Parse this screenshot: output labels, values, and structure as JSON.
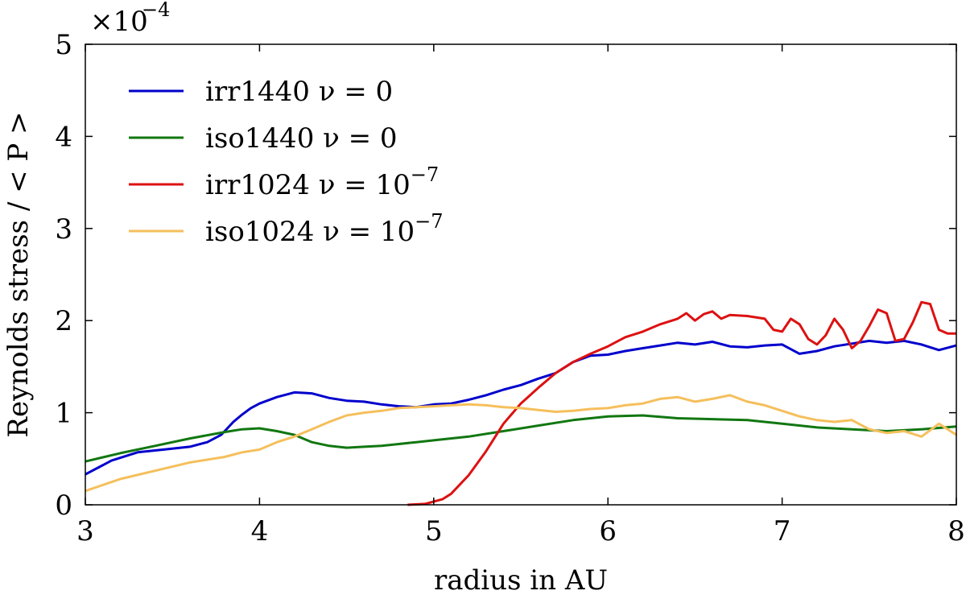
{
  "chart_data": {
    "type": "line",
    "title": "",
    "xlabel": "radius in AU",
    "ylabel": "Reynolds stress / < P >",
    "y_scale_label": {
      "prefix": "×10",
      "exponent": "−4"
    },
    "xlim": [
      3,
      8
    ],
    "ylim": [
      0,
      5
    ],
    "xticks": [
      "3",
      "4",
      "5",
      "6",
      "7",
      "8"
    ],
    "yticks": [
      "0",
      "1",
      "2",
      "3",
      "4",
      "5"
    ],
    "grid": false,
    "legend_position": "top-left",
    "series": [
      {
        "name": "irr1440 ν = 0",
        "label_text": "irr1440 ν = 0",
        "label_sup": "",
        "color": "#0000cc",
        "x": [
          3.0,
          3.15,
          3.3,
          3.45,
          3.6,
          3.7,
          3.78,
          3.85,
          3.9,
          3.95,
          4.0,
          4.1,
          4.2,
          4.3,
          4.4,
          4.5,
          4.6,
          4.7,
          4.8,
          4.9,
          5.0,
          5.1,
          5.2,
          5.3,
          5.4,
          5.5,
          5.6,
          5.7,
          5.8,
          5.9,
          6.0,
          6.1,
          6.2,
          6.3,
          6.4,
          6.5,
          6.6,
          6.7,
          6.8,
          6.9,
          7.0,
          7.1,
          7.2,
          7.3,
          7.4,
          7.5,
          7.6,
          7.7,
          7.8,
          7.9,
          8.0
        ],
        "y": [
          0.33,
          0.48,
          0.57,
          0.6,
          0.63,
          0.68,
          0.76,
          0.9,
          0.98,
          1.05,
          1.1,
          1.17,
          1.22,
          1.21,
          1.16,
          1.13,
          1.12,
          1.09,
          1.07,
          1.06,
          1.09,
          1.1,
          1.14,
          1.19,
          1.25,
          1.3,
          1.37,
          1.43,
          1.55,
          1.62,
          1.63,
          1.67,
          1.7,
          1.73,
          1.76,
          1.74,
          1.77,
          1.72,
          1.71,
          1.73,
          1.74,
          1.64,
          1.67,
          1.72,
          1.75,
          1.78,
          1.76,
          1.78,
          1.74,
          1.68,
          1.73
        ]
      },
      {
        "name": "iso1440 ν = 0",
        "label_text": "iso1440 ν = 0",
        "label_sup": "",
        "color": "#117711",
        "x": [
          3.0,
          3.2,
          3.4,
          3.6,
          3.8,
          3.9,
          4.0,
          4.1,
          4.2,
          4.3,
          4.4,
          4.5,
          4.6,
          4.7,
          4.8,
          4.9,
          5.0,
          5.2,
          5.4,
          5.6,
          5.8,
          6.0,
          6.2,
          6.4,
          6.6,
          6.8,
          7.0,
          7.2,
          7.4,
          7.6,
          7.8,
          8.0
        ],
        "y": [
          0.47,
          0.56,
          0.64,
          0.72,
          0.79,
          0.82,
          0.83,
          0.8,
          0.76,
          0.68,
          0.64,
          0.62,
          0.63,
          0.64,
          0.66,
          0.68,
          0.7,
          0.74,
          0.8,
          0.86,
          0.92,
          0.96,
          0.97,
          0.94,
          0.93,
          0.92,
          0.88,
          0.84,
          0.82,
          0.8,
          0.82,
          0.85
        ]
      },
      {
        "name": "irr1024 ν = 10−7",
        "label_text": "irr1024 ν = 10",
        "label_sup": "−7",
        "color": "#dd1111",
        "x": [
          4.85,
          4.95,
          5.05,
          5.1,
          5.2,
          5.3,
          5.4,
          5.5,
          5.6,
          5.7,
          5.8,
          5.9,
          6.0,
          6.1,
          6.2,
          6.3,
          6.4,
          6.45,
          6.5,
          6.55,
          6.6,
          6.65,
          6.7,
          6.8,
          6.9,
          6.95,
          7.0,
          7.05,
          7.1,
          7.15,
          7.2,
          7.25,
          7.3,
          7.35,
          7.4,
          7.45,
          7.5,
          7.55,
          7.6,
          7.65,
          7.7,
          7.75,
          7.8,
          7.85,
          7.9,
          7.95,
          8.0
        ],
        "y": [
          0.0,
          0.01,
          0.06,
          0.12,
          0.32,
          0.58,
          0.88,
          1.1,
          1.27,
          1.43,
          1.55,
          1.64,
          1.72,
          1.82,
          1.88,
          1.96,
          2.02,
          2.08,
          2.0,
          2.07,
          2.1,
          2.02,
          2.06,
          2.05,
          2.02,
          1.9,
          1.88,
          2.02,
          1.96,
          1.8,
          1.74,
          1.84,
          2.02,
          1.9,
          1.7,
          1.78,
          1.94,
          2.12,
          2.08,
          1.78,
          1.8,
          1.98,
          2.2,
          2.18,
          1.9,
          1.86,
          1.86
        ]
      },
      {
        "name": "iso1024 ν = 10−7",
        "label_text": "iso1024 ν = 10",
        "label_sup": "−7",
        "color": "#f5bf5c",
        "x": [
          3.0,
          3.2,
          3.4,
          3.6,
          3.8,
          3.9,
          4.0,
          4.1,
          4.2,
          4.3,
          4.4,
          4.5,
          4.6,
          4.7,
          4.8,
          4.9,
          5.0,
          5.1,
          5.2,
          5.3,
          5.4,
          5.5,
          5.6,
          5.7,
          5.8,
          5.9,
          6.0,
          6.1,
          6.2,
          6.3,
          6.4,
          6.5,
          6.6,
          6.7,
          6.8,
          6.9,
          7.0,
          7.1,
          7.2,
          7.3,
          7.4,
          7.5,
          7.6,
          7.7,
          7.8,
          7.9,
          8.0
        ],
        "y": [
          0.15,
          0.28,
          0.37,
          0.46,
          0.52,
          0.57,
          0.6,
          0.68,
          0.74,
          0.82,
          0.9,
          0.97,
          1.0,
          1.02,
          1.05,
          1.06,
          1.07,
          1.08,
          1.09,
          1.08,
          1.06,
          1.05,
          1.03,
          1.01,
          1.02,
          1.04,
          1.05,
          1.08,
          1.1,
          1.15,
          1.17,
          1.12,
          1.15,
          1.19,
          1.12,
          1.08,
          1.02,
          0.96,
          0.92,
          0.9,
          0.92,
          0.82,
          0.78,
          0.8,
          0.74,
          0.88,
          0.76
        ]
      }
    ]
  }
}
